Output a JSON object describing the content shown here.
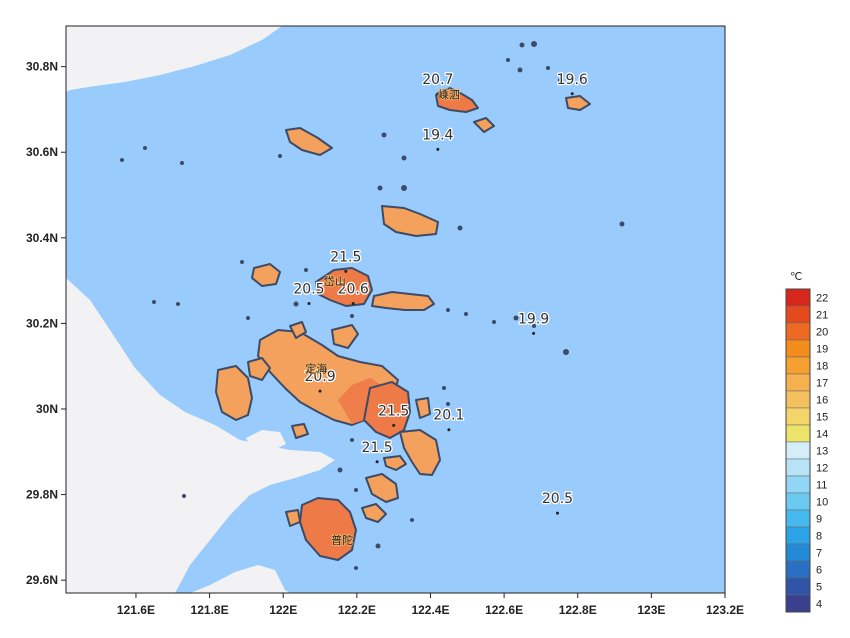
{
  "map": {
    "y_axis_labels": [
      {
        "text": "30.8N",
        "lat": 30.8
      },
      {
        "text": "30.6N",
        "lat": 30.6
      },
      {
        "text": "30.4N",
        "lat": 30.4
      },
      {
        "text": "30.2N",
        "lat": 30.2
      },
      {
        "text": "30N",
        "lat": 30.0
      },
      {
        "text": "29.8N",
        "lat": 29.8
      },
      {
        "text": "29.6N",
        "lat": 29.6
      }
    ],
    "x_axis_labels": [
      {
        "text": "121.6E",
        "lon": 121.6
      },
      {
        "text": "121.8E",
        "lon": 121.8
      },
      {
        "text": "122E",
        "lon": 122.0
      },
      {
        "text": "122.2E",
        "lon": 122.2
      },
      {
        "text": "122.4E",
        "lon": 122.4
      },
      {
        "text": "122.6E",
        "lon": 122.6
      },
      {
        "text": "122.8E",
        "lon": 122.8
      },
      {
        "text": "123E",
        "lon": 123.0
      },
      {
        "text": "123.2E",
        "lon": 123.2
      }
    ],
    "bounds": {
      "lon_min": 121.41,
      "lon_max": 123.2,
      "lat_min": 29.57,
      "lat_max": 30.895
    },
    "stations": [
      {
        "value": "20.7",
        "lon": 122.42,
        "lat": 30.76
      },
      {
        "value": "19.6",
        "lon": 122.785,
        "lat": 30.76
      },
      {
        "value": "19.4",
        "lon": 122.42,
        "lat": 30.63
      },
      {
        "value": "21.5",
        "lon": 122.17,
        "lat": 30.345
      },
      {
        "value": "20.5",
        "lon": 122.07,
        "lat": 30.27
      },
      {
        "value": "20.6",
        "lon": 122.19,
        "lat": 30.27
      },
      {
        "value": "19.9",
        "lon": 122.68,
        "lat": 30.2
      },
      {
        "value": "20.9",
        "lon": 122.1,
        "lat": 30.065
      },
      {
        "value": "21.5",
        "lon": 122.3,
        "lat": 29.985
      },
      {
        "value": "20.1",
        "lon": 122.45,
        "lat": 29.975
      },
      {
        "value": "21.5",
        "lon": 122.255,
        "lat": 29.9
      },
      {
        "value": "20.5",
        "lon": 122.745,
        "lat": 29.78
      }
    ],
    "places": [
      {
        "name": "嵊泗",
        "lon": 122.45,
        "lat": 30.725
      },
      {
        "name": "岱山",
        "lon": 122.14,
        "lat": 30.29
      },
      {
        "name": "定海",
        "lon": 122.09,
        "lat": 30.085
      },
      {
        "name": "普陀",
        "lon": 122.16,
        "lat": 29.685
      }
    ]
  },
  "legend": {
    "unit": "℃",
    "bins": [
      {
        "label": "22",
        "color": "#d7261b"
      },
      {
        "label": "21",
        "color": "#e54a1e"
      },
      {
        "label": "20",
        "color": "#ee6a22"
      },
      {
        "label": "19",
        "color": "#f28c1a"
      },
      {
        "label": "18",
        "color": "#f5a030"
      },
      {
        "label": "17",
        "color": "#f7b050"
      },
      {
        "label": "16",
        "color": "#f5c060"
      },
      {
        "label": "15",
        "color": "#f5d56a"
      },
      {
        "label": "14",
        "color": "#ece36a"
      },
      {
        "label": "13",
        "color": "#d4eef9"
      },
      {
        "label": "12",
        "color": "#b8e3f7"
      },
      {
        "label": "11",
        "color": "#92d6f5"
      },
      {
        "label": "10",
        "color": "#6ccaf2"
      },
      {
        "label": "9",
        "color": "#45b8ee"
      },
      {
        "label": "8",
        "color": "#2ca3e6"
      },
      {
        "label": "7",
        "color": "#238ad8"
      },
      {
        "label": "6",
        "color": "#2970c4"
      },
      {
        "label": "5",
        "color": "#3055a8"
      },
      {
        "label": "4",
        "color": "#3a3f8e"
      }
    ]
  },
  "colors": {
    "sea": "#99cbfd",
    "land": "#f2f2f4",
    "island": "#f3a15c",
    "island_warm": "#ee7a48",
    "outline": "#3d4b66"
  }
}
